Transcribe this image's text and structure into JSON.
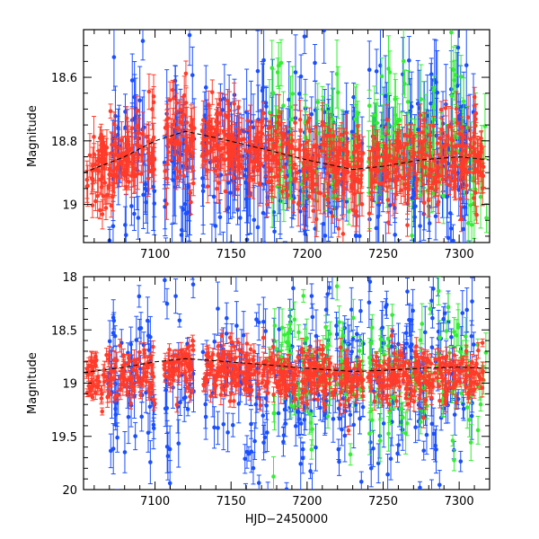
{
  "chart_data": [
    {
      "type": "scatter",
      "panel": "top",
      "xlabel": "",
      "ylabel": "Magnitude",
      "xlim": [
        7053,
        7320
      ],
      "ylim": [
        19.12,
        18.45
      ],
      "y_inverted": true,
      "x_ticks": [
        7100,
        7150,
        7200,
        7250,
        7300
      ],
      "x_tick_labels": [
        "7100",
        "7150",
        "7200",
        "7250",
        "7300"
      ],
      "y_ticks": [
        18.6,
        18.8,
        19.0
      ],
      "y_tick_labels": [
        "18.6",
        "18.8",
        "19"
      ],
      "x_minor_step": 10,
      "y_minor_step": 0.05,
      "gaps": [
        [
          7100,
          7106
        ],
        [
          7126,
          7131
        ],
        [
          7237,
          7240
        ]
      ],
      "series": [
        {
          "name": "blue",
          "color": "#1a4fff",
          "mean": 18.86,
          "scatter_sd": 0.15,
          "err": [
            0.04,
            0.14
          ],
          "x_range": [
            7069,
            7310
          ],
          "count": 420,
          "trend": false
        },
        {
          "name": "green",
          "color": "#33ee33",
          "mean": 18.82,
          "scatter_sd": 0.12,
          "err": [
            0.04,
            0.12
          ],
          "x_range": [
            7175,
            7318
          ],
          "count": 170,
          "trend": false
        },
        {
          "name": "red",
          "color": "#ff3b2a",
          "mean": 18.86,
          "scatter_sd": 0.07,
          "err": [
            0.02,
            0.07
          ],
          "x_range": [
            7055,
            7316
          ],
          "count": 750,
          "trend": true
        }
      ],
      "model_curve": {
        "color": "#000000",
        "x": [
          7053,
          7080,
          7100,
          7120,
          7140,
          7175,
          7200,
          7230,
          7250,
          7275,
          7300,
          7320
        ],
        "y": [
          18.9,
          18.85,
          18.8,
          18.77,
          18.79,
          18.83,
          18.86,
          18.89,
          18.88,
          18.86,
          18.85,
          18.86
        ]
      }
    },
    {
      "type": "scatter",
      "panel": "bottom",
      "xlabel": "HJD−2450000",
      "ylabel": "Magnitude",
      "xlim": [
        7053,
        7320
      ],
      "ylim": [
        20.0,
        18.0
      ],
      "y_inverted": true,
      "x_ticks": [
        7100,
        7150,
        7200,
        7250,
        7300
      ],
      "x_tick_labels": [
        "7100",
        "7150",
        "7200",
        "7250",
        "7300"
      ],
      "y_ticks": [
        18.0,
        18.5,
        19.0,
        19.5,
        20.0
      ],
      "y_tick_labels": [
        "18",
        "18.5",
        "19",
        "19.5",
        "20"
      ],
      "x_minor_step": 10,
      "y_minor_step": 0.1,
      "gaps": [
        [
          7100,
          7106
        ],
        [
          7126,
          7131
        ],
        [
          7237,
          7240
        ]
      ],
      "series": [
        {
          "name": "blue",
          "color": "#1a4fff",
          "mean": 19.0,
          "scatter_sd": 0.45,
          "err": [
            0.05,
            0.25
          ],
          "x_range": [
            7069,
            7310
          ],
          "count": 420,
          "trend": false
        },
        {
          "name": "green",
          "color": "#33ee33",
          "mean": 18.9,
          "scatter_sd": 0.3,
          "err": [
            0.05,
            0.2
          ],
          "x_range": [
            7175,
            7318
          ],
          "count": 170,
          "trend": false
        },
        {
          "name": "red",
          "color": "#ff3b2a",
          "mean": 18.92,
          "scatter_sd": 0.12,
          "err": [
            0.03,
            0.1
          ],
          "x_range": [
            7055,
            7316
          ],
          "count": 750,
          "trend": true
        }
      ],
      "model_curve": {
        "color": "#000000",
        "x": [
          7053,
          7080,
          7100,
          7120,
          7140,
          7175,
          7200,
          7230,
          7250,
          7275,
          7300,
          7320
        ],
        "y": [
          18.9,
          18.85,
          18.8,
          18.77,
          18.79,
          18.83,
          18.86,
          18.89,
          18.88,
          18.86,
          18.85,
          18.86
        ]
      }
    }
  ]
}
